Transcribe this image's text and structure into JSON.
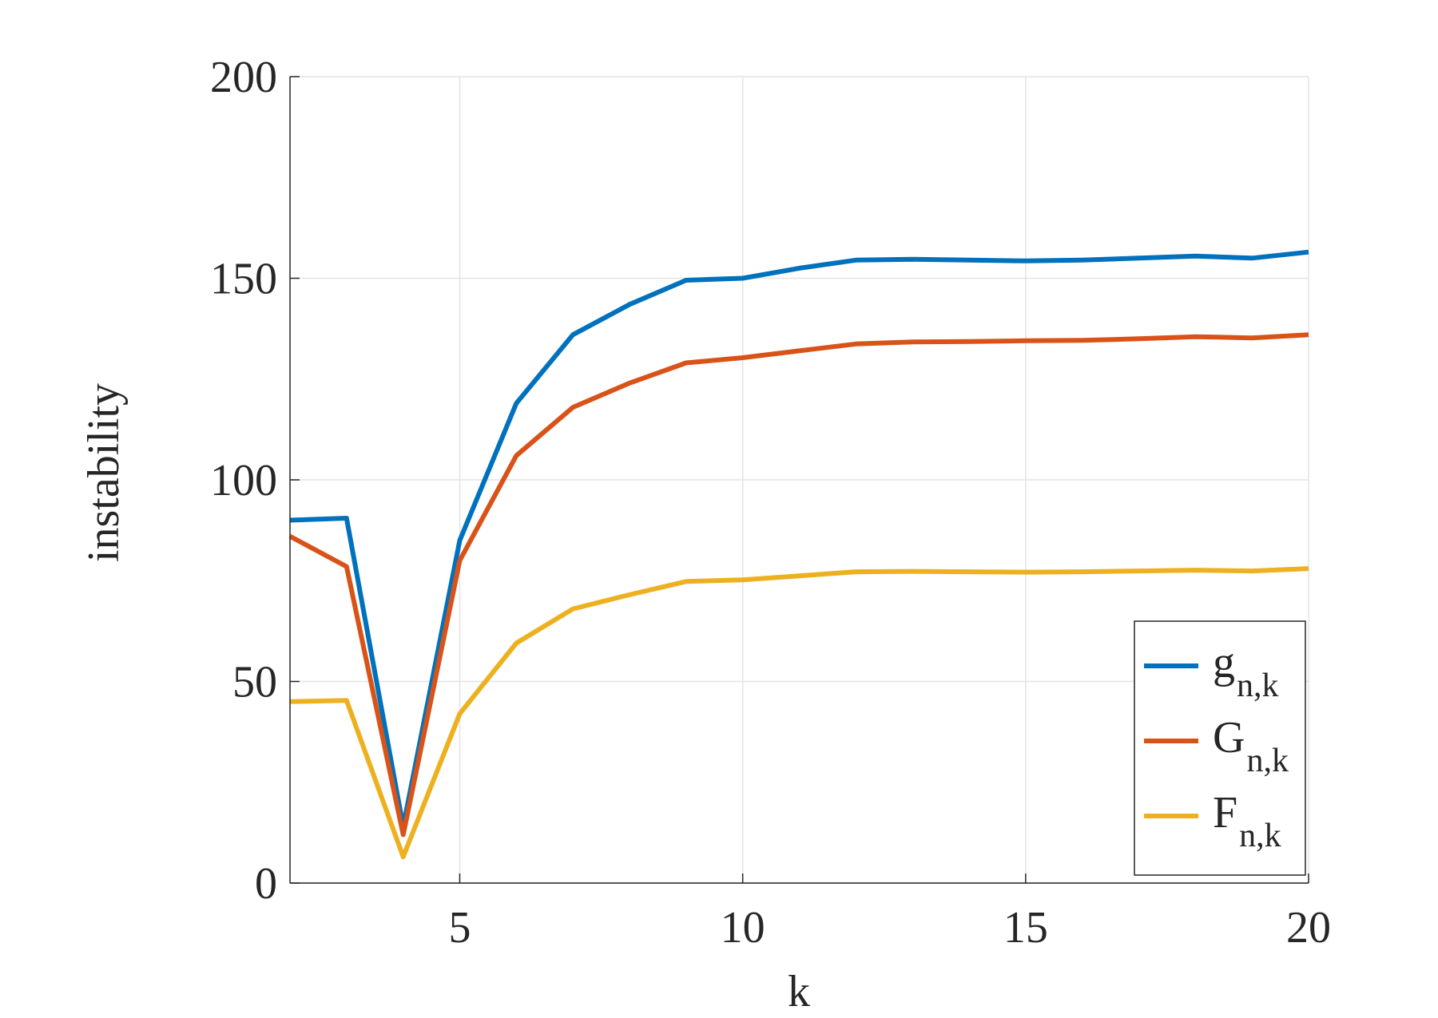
{
  "chart_data": {
    "type": "line",
    "title": "",
    "xlabel": "k",
    "ylabel": "instability",
    "xlim": [
      2,
      20
    ],
    "ylim": [
      0,
      200
    ],
    "xticks": [
      5,
      10,
      15,
      20
    ],
    "yticks": [
      0,
      50,
      100,
      150,
      200
    ],
    "xtick_labels": [
      "5",
      "10",
      "15",
      "20"
    ],
    "ytick_labels": [
      "0",
      "50",
      "100",
      "150",
      "200"
    ],
    "grid": true,
    "legend_position": "bottom-right",
    "x": [
      2,
      3,
      4,
      5,
      6,
      7,
      8,
      9,
      10,
      11,
      12,
      13,
      14,
      15,
      16,
      17,
      18,
      19,
      20
    ],
    "series": [
      {
        "name": "g",
        "subscript": "n,k",
        "color": "#0072BD",
        "values": [
          90,
          90.5,
          14,
          85,
          119,
          136,
          143.5,
          149.5,
          150,
          152.5,
          154.5,
          154.7,
          154.5,
          154.3,
          154.5,
          155,
          155.5,
          155,
          156.5
        ]
      },
      {
        "name": "G",
        "subscript": "n,k",
        "color": "#D95319",
        "values": [
          86,
          78.5,
          12,
          80,
          106,
          118,
          124,
          129,
          130.3,
          132,
          133.7,
          134.2,
          134.3,
          134.5,
          134.6,
          135,
          135.5,
          135.2,
          136
        ]
      },
      {
        "name": "F",
        "subscript": "n,k",
        "color": "#EDB120",
        "values": [
          45,
          45.3,
          6.5,
          42,
          59.5,
          68,
          71.5,
          74.8,
          75.2,
          76.2,
          77.2,
          77.3,
          77.2,
          77.1,
          77.2,
          77.4,
          77.6,
          77.4,
          78
        ]
      }
    ]
  }
}
